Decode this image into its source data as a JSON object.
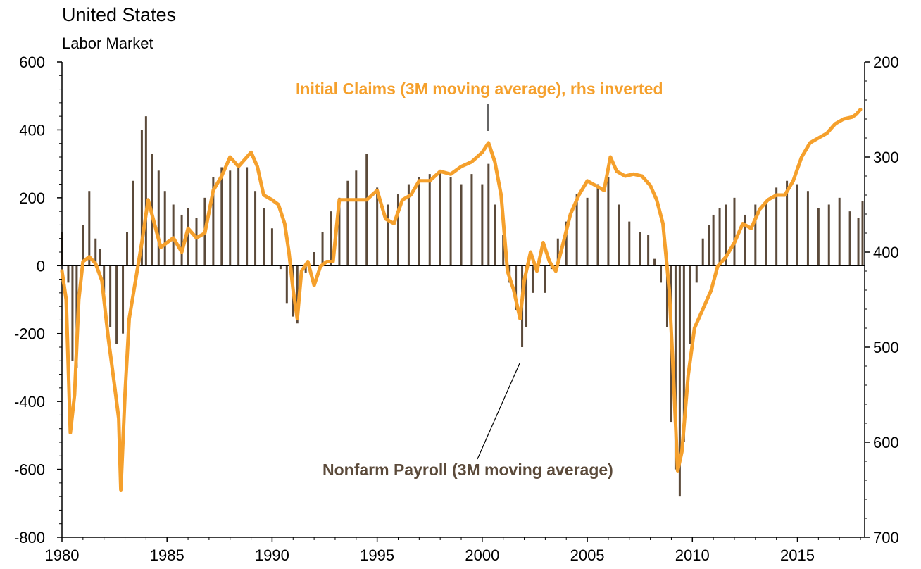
{
  "header": {
    "title": "United States",
    "subtitle": "Labor Market"
  },
  "colors": {
    "claims_line": "#F5A02C",
    "payroll_bars": "#5B4A3A",
    "axis": "#000000"
  },
  "chart_data": {
    "type": "bar",
    "title": "United States",
    "subtitle": "Labor Market",
    "x_range": [
      1980,
      2018.2
    ],
    "x_ticks": [
      "1980",
      "1985",
      "1990",
      "1995",
      "2000",
      "2005",
      "2010",
      "2015"
    ],
    "y_left": {
      "range": [
        -800,
        600
      ],
      "ticks": [
        "600",
        "400",
        "200",
        "0",
        "-200",
        "-400",
        "-600",
        "-800"
      ]
    },
    "y_right": {
      "range": [
        200,
        700
      ],
      "inverted": true,
      "ticks": [
        "200",
        "300",
        "400",
        "500",
        "600",
        "700"
      ]
    },
    "grid": false,
    "annotations": [
      {
        "text": "Initial Claims (3M moving average), rhs inverted",
        "color": "#F5A02C",
        "target_series": "claims"
      },
      {
        "text": "Nonfarm Payroll (3M moving average)",
        "color": "#5B4A3A",
        "target_series": "payroll"
      }
    ],
    "series": [
      {
        "id": "payroll",
        "type": "bar",
        "axis": "left",
        "x": [
          1980.0,
          1980.3,
          1980.5,
          1980.7,
          1981.0,
          1981.3,
          1981.6,
          1981.8,
          1982.0,
          1982.3,
          1982.6,
          1982.9,
          1983.1,
          1983.4,
          1983.8,
          1984.0,
          1984.3,
          1984.6,
          1984.9,
          1985.3,
          1985.7,
          1986.0,
          1986.4,
          1986.8,
          1987.2,
          1987.6,
          1988.0,
          1988.4,
          1988.8,
          1989.2,
          1989.6,
          1990.0,
          1990.4,
          1990.7,
          1991.0,
          1991.2,
          1991.6,
          1992.0,
          1992.4,
          1992.8,
          1993.2,
          1993.6,
          1994.0,
          1994.5,
          1995.0,
          1995.5,
          1996.0,
          1996.5,
          1997.0,
          1997.5,
          1998.0,
          1998.5,
          1999.0,
          1999.5,
          2000.0,
          2000.3,
          2000.6,
          2001.0,
          2001.3,
          2001.6,
          2001.9,
          2002.1,
          2002.4,
          2002.7,
          2003.0,
          2003.3,
          2003.6,
          2004.0,
          2004.5,
          2005.0,
          2005.5,
          2006.0,
          2006.5,
          2007.0,
          2007.5,
          2007.9,
          2008.2,
          2008.5,
          2008.8,
          2009.0,
          2009.2,
          2009.4,
          2009.6,
          2009.9,
          2010.2,
          2010.5,
          2010.8,
          2011.0,
          2011.3,
          2011.6,
          2012.0,
          2012.5,
          2013.0,
          2013.5,
          2014.0,
          2014.5,
          2015.0,
          2015.5,
          2016.0,
          2016.5,
          2017.0,
          2017.5,
          2017.9,
          2018.1
        ],
        "y": [
          100,
          -50,
          -280,
          -300,
          120,
          220,
          80,
          50,
          -80,
          -180,
          -230,
          -200,
          100,
          250,
          400,
          440,
          330,
          280,
          220,
          180,
          150,
          170,
          140,
          200,
          260,
          290,
          280,
          300,
          290,
          220,
          170,
          110,
          -10,
          -110,
          -150,
          -170,
          -20,
          40,
          100,
          160,
          200,
          250,
          280,
          330,
          230,
          180,
          210,
          240,
          260,
          270,
          280,
          260,
          240,
          270,
          240,
          300,
          180,
          90,
          -50,
          -130,
          -240,
          -180,
          -80,
          20,
          -80,
          -10,
          80,
          130,
          210,
          200,
          240,
          260,
          180,
          130,
          100,
          90,
          20,
          -50,
          -180,
          -460,
          -600,
          -680,
          -520,
          -230,
          -50,
          80,
          120,
          150,
          170,
          180,
          200,
          150,
          180,
          190,
          230,
          250,
          240,
          220,
          170,
          180,
          200,
          160,
          140,
          190
        ]
      },
      {
        "id": "claims",
        "type": "line",
        "axis": "right",
        "x": [
          1980.0,
          1980.2,
          1980.4,
          1980.6,
          1980.8,
          1981.0,
          1981.3,
          1981.6,
          1981.9,
          1982.2,
          1982.5,
          1982.7,
          1982.8,
          1983.0,
          1983.2,
          1983.5,
          1983.8,
          1984.1,
          1984.4,
          1984.7,
          1985.0,
          1985.3,
          1985.7,
          1986.0,
          1986.4,
          1986.8,
          1987.2,
          1987.6,
          1988.0,
          1988.4,
          1988.8,
          1989.0,
          1989.3,
          1989.6,
          1990.0,
          1990.3,
          1990.6,
          1990.8,
          1991.0,
          1991.2,
          1991.4,
          1991.7,
          1992.0,
          1992.3,
          1992.6,
          1992.9,
          1993.2,
          1993.6,
          1994.0,
          1994.5,
          1995.0,
          1995.4,
          1995.8,
          1996.2,
          1996.6,
          1997.0,
          1997.5,
          1998.0,
          1998.5,
          1999.0,
          1999.5,
          2000.0,
          2000.3,
          2000.6,
          2000.9,
          2001.2,
          2001.5,
          2001.8,
          2002.0,
          2002.3,
          2002.6,
          2002.9,
          2003.2,
          2003.5,
          2003.8,
          2004.2,
          2004.6,
          2005.0,
          2005.4,
          2005.8,
          2006.1,
          2006.4,
          2006.8,
          2007.2,
          2007.6,
          2008.0,
          2008.3,
          2008.6,
          2008.9,
          2009.1,
          2009.3,
          2009.5,
          2009.8,
          2010.1,
          2010.5,
          2010.9,
          2011.2,
          2011.6,
          2012.0,
          2012.4,
          2012.8,
          2013.2,
          2013.6,
          2014.0,
          2014.4,
          2014.8,
          2015.2,
          2015.6,
          2016.0,
          2016.4,
          2016.8,
          2017.2,
          2017.6,
          2017.8,
          2018.0
        ],
        "y": [
          420,
          450,
          590,
          550,
          450,
          410,
          405,
          412,
          430,
          490,
          540,
          575,
          650,
          550,
          470,
          430,
          390,
          345,
          370,
          395,
          390,
          385,
          400,
          375,
          385,
          380,
          335,
          320,
          300,
          310,
          300,
          295,
          310,
          340,
          345,
          350,
          370,
          400,
          440,
          470,
          420,
          410,
          435,
          415,
          410,
          410,
          345,
          345,
          345,
          345,
          335,
          365,
          370,
          345,
          340,
          325,
          325,
          315,
          318,
          310,
          305,
          295,
          285,
          305,
          340,
          420,
          440,
          470,
          430,
          400,
          420,
          390,
          410,
          420,
          395,
          360,
          340,
          325,
          330,
          335,
          300,
          315,
          320,
          318,
          320,
          330,
          345,
          370,
          440,
          530,
          630,
          610,
          530,
          480,
          460,
          440,
          415,
          405,
          390,
          370,
          375,
          355,
          345,
          340,
          340,
          325,
          300,
          285,
          280,
          275,
          265,
          260,
          258,
          255,
          250
        ]
      }
    ]
  }
}
